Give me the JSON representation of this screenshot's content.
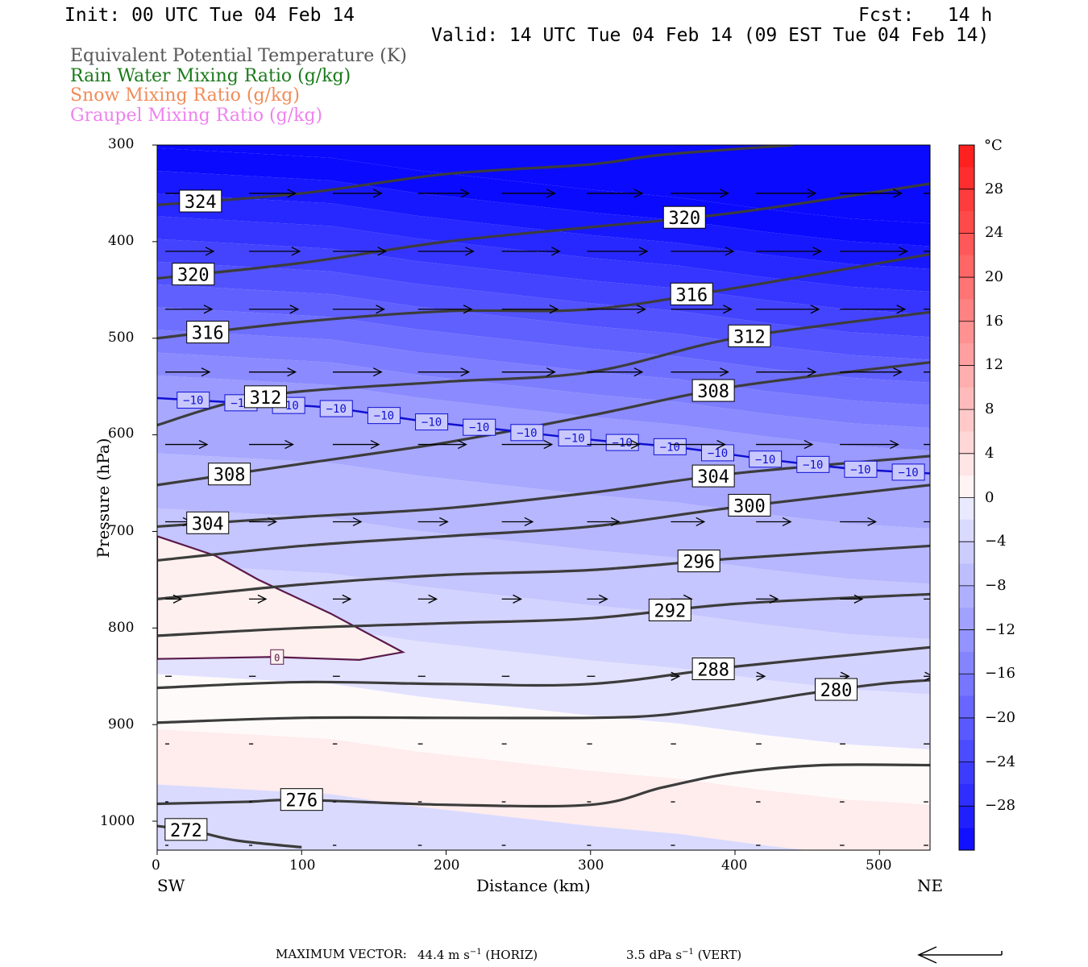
{
  "header": {
    "init": "Init: 00 UTC Tue 04 Feb 14",
    "fcst": "Fcst:   14 h",
    "valid": "Valid: 14 UTC Tue 04 Feb 14 (09 EST Tue 04 Feb 14)"
  },
  "legend": [
    {
      "label": "Equivalent Potential Temperature (K)",
      "color": "#555555"
    },
    {
      "label": "Rain Water Mixing Ratio (g/kg)",
      "color": "#1a7a1a"
    },
    {
      "label": "Snow Mixing Ratio (g/kg)",
      "color": "#f08c5a"
    },
    {
      "label": "Graupel Mixing Ratio (g/kg)",
      "color": "#ee82ee"
    }
  ],
  "axes": {
    "ylabel": "Pressure (hPa)",
    "xlabel": "Distance (km)",
    "left_end": "SW",
    "right_end": "NE",
    "yticks": [
      "300",
      "400",
      "500",
      "600",
      "700",
      "800",
      "900",
      "1000"
    ],
    "xticks": [
      "0",
      "100",
      "200",
      "300",
      "400",
      "500"
    ],
    "colorbar_unit": "°C",
    "colorbar_ticks": [
      "28",
      "24",
      "20",
      "16",
      "12",
      "8",
      "4",
      "0",
      "−4",
      "−8",
      "−12",
      "−16",
      "−20",
      "−24",
      "−28"
    ]
  },
  "footer": {
    "max_vector_label": "MAXIMUM VECTOR:",
    "horiz": "44.4 m s",
    "horiz_exp": "−1",
    "horiz_tag": " (HORIZ)",
    "vert": "3.5 dPa s",
    "vert_exp": "−1",
    "vert_tag": " (VERT)"
  },
  "chart_data": {
    "type": "contour",
    "x_range_km": [
      0,
      535
    ],
    "p_range_hPa": [
      300,
      1030
    ],
    "temperature_colorbar": {
      "unit": "°C",
      "min": -32,
      "max": 32,
      "interval": 2
    },
    "theta_e_contours": [
      {
        "value": 272,
        "label": "272",
        "points": [
          [
            0,
            1005
          ],
          [
            25,
            1010
          ],
          [
            55,
            1020
          ],
          [
            100,
            1027
          ]
        ]
      },
      {
        "value": 276,
        "label": "276",
        "points": [
          [
            0,
            982
          ],
          [
            60,
            980
          ],
          [
            100,
            978
          ],
          [
            200,
            983
          ],
          [
            300,
            983
          ],
          [
            350,
            965
          ],
          [
            400,
            950
          ],
          [
            460,
            942
          ],
          [
            535,
            942
          ]
        ]
      },
      {
        "value": 280,
        "label": "280",
        "points": [
          [
            0,
            898
          ],
          [
            100,
            893
          ],
          [
            200,
            893
          ],
          [
            300,
            893
          ],
          [
            350,
            890
          ],
          [
            400,
            880
          ],
          [
            450,
            868
          ],
          [
            500,
            858
          ],
          [
            535,
            854
          ]
        ]
      },
      {
        "value": 288,
        "label": "288",
        "points": [
          [
            0,
            862
          ],
          [
            100,
            856
          ],
          [
            200,
            858
          ],
          [
            300,
            858
          ],
          [
            400,
            840
          ],
          [
            535,
            820
          ]
        ]
      },
      {
        "value": 292,
        "label": "292",
        "points": [
          [
            0,
            808
          ],
          [
            100,
            800
          ],
          [
            200,
            795
          ],
          [
            300,
            790
          ],
          [
            400,
            775
          ],
          [
            535,
            765
          ]
        ]
      },
      {
        "value": 296,
        "label": "296",
        "points": [
          [
            0,
            770
          ],
          [
            100,
            755
          ],
          [
            200,
            745
          ],
          [
            300,
            740
          ],
          [
            400,
            728
          ],
          [
            535,
            715
          ]
        ]
      },
      {
        "value": 300,
        "label": "300",
        "points": [
          [
            0,
            730
          ],
          [
            100,
            715
          ],
          [
            200,
            705
          ],
          [
            300,
            695
          ],
          [
            400,
            675
          ],
          [
            535,
            652
          ]
        ]
      },
      {
        "value": 304,
        "label": "304",
        "points": [
          [
            0,
            695
          ],
          [
            100,
            685
          ],
          [
            200,
            676
          ],
          [
            300,
            660
          ],
          [
            400,
            640
          ],
          [
            535,
            622
          ]
        ]
      },
      {
        "value": 308,
        "label": "308",
        "points": [
          [
            0,
            652
          ],
          [
            100,
            630
          ],
          [
            200,
            608
          ],
          [
            300,
            580
          ],
          [
            400,
            550
          ],
          [
            535,
            525
          ]
        ]
      },
      {
        "value": 312,
        "label": "312",
        "points": [
          [
            0,
            590
          ],
          [
            50,
            567
          ],
          [
            100,
            555
          ],
          [
            200,
            545
          ],
          [
            300,
            535
          ],
          [
            400,
            500
          ],
          [
            535,
            473
          ]
        ]
      },
      {
        "value": 316,
        "label": "316",
        "points": [
          [
            0,
            500
          ],
          [
            100,
            483
          ],
          [
            200,
            472
          ],
          [
            300,
            470
          ],
          [
            400,
            448
          ],
          [
            535,
            413
          ]
        ]
      },
      {
        "value": 320,
        "label": "320",
        "points": [
          [
            0,
            438
          ],
          [
            100,
            422
          ],
          [
            200,
            400
          ],
          [
            300,
            385
          ],
          [
            400,
            370
          ],
          [
            535,
            340
          ]
        ]
      },
      {
        "value": 324,
        "label": "324",
        "points": [
          [
            0,
            362
          ],
          [
            100,
            350
          ],
          [
            200,
            330
          ],
          [
            300,
            320
          ],
          [
            350,
            310
          ],
          [
            440,
            300
          ]
        ]
      }
    ],
    "isotherm_minus10": {
      "value": -10,
      "label": "−10",
      "points": [
        [
          0,
          562
        ],
        [
          60,
          567
        ],
        [
          120,
          572
        ],
        [
          180,
          585
        ],
        [
          240,
          595
        ],
        [
          300,
          605
        ],
        [
          360,
          613
        ],
        [
          420,
          625
        ],
        [
          480,
          635
        ],
        [
          535,
          640
        ]
      ]
    },
    "isotherm_zero": {
      "value": 0,
      "label": "0",
      "points": [
        [
          0,
          705
        ],
        [
          40,
          725
        ],
        [
          70,
          750
        ],
        [
          120,
          785
        ],
        [
          170,
          825
        ],
        [
          140,
          833
        ],
        [
          80,
          830
        ],
        [
          0,
          832
        ]
      ]
    },
    "wind_vectors_note": "Horizontal wind vectors pointing east, strongest aloft",
    "max_vector": {
      "horizontal_m_s": 44.4,
      "vertical_dPa_s": 3.5
    }
  }
}
